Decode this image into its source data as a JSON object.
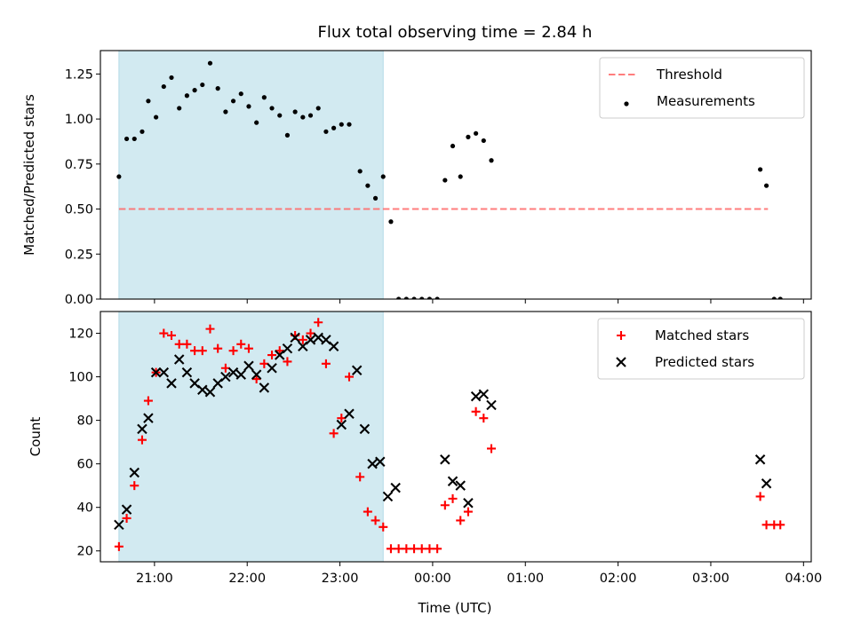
{
  "chart_data": [
    {
      "type": "scatter",
      "title": "Flux total observing time = 2.84 h",
      "xlabel": "",
      "ylabel": "Matched/Predicted stars",
      "xlim": [
        "20:25",
        "04:05"
      ],
      "ylim": [
        0,
        1.38
      ],
      "x_ticks": [
        "21:00",
        "22:00",
        "23:00",
        "00:00",
        "01:00",
        "02:00",
        "03:00",
        "04:00"
      ],
      "y_ticks": [
        "0.00",
        "0.25",
        "0.50",
        "0.75",
        "1.00",
        "1.25"
      ],
      "y_tick_values": [
        0,
        0.25,
        0.5,
        0.75,
        1.0,
        1.25
      ],
      "shaded_region": {
        "start": "20:37",
        "end": "23:28",
        "color": "#add8e6"
      },
      "threshold": {
        "name": "Threshold",
        "value": 0.5,
        "start": "20:37",
        "end": "03:37",
        "color": "#ff6666"
      },
      "legend": {
        "location": "upper right",
        "entries": [
          "Threshold",
          "Measurements"
        ]
      },
      "series": [
        {
          "name": "Measurements",
          "color": "#000000",
          "marker": "dot",
          "points": [
            [
              "20:37",
              0.68
            ],
            [
              "20:42",
              0.89
            ],
            [
              "20:47",
              0.89
            ],
            [
              "20:52",
              0.93
            ],
            [
              "20:56",
              1.1
            ],
            [
              "21:01",
              1.01
            ],
            [
              "21:06",
              1.18
            ],
            [
              "21:11",
              1.23
            ],
            [
              "21:16",
              1.06
            ],
            [
              "21:21",
              1.13
            ],
            [
              "21:26",
              1.16
            ],
            [
              "21:31",
              1.19
            ],
            [
              "21:36",
              1.31
            ],
            [
              "21:41",
              1.17
            ],
            [
              "21:46",
              1.04
            ],
            [
              "21:51",
              1.1
            ],
            [
              "21:56",
              1.14
            ],
            [
              "22:01",
              1.07
            ],
            [
              "22:06",
              0.98
            ],
            [
              "22:11",
              1.12
            ],
            [
              "22:16",
              1.06
            ],
            [
              "22:21",
              1.02
            ],
            [
              "22:26",
              0.91
            ],
            [
              "22:31",
              1.04
            ],
            [
              "22:36",
              1.01
            ],
            [
              "22:41",
              1.02
            ],
            [
              "22:46",
              1.06
            ],
            [
              "22:51",
              0.93
            ],
            [
              "22:56",
              0.95
            ],
            [
              "23:01",
              0.97
            ],
            [
              "23:06",
              0.97
            ],
            [
              "23:13",
              0.71
            ],
            [
              "23:18",
              0.63
            ],
            [
              "23:23",
              0.56
            ],
            [
              "23:28",
              0.68
            ],
            [
              "23:33",
              0.43
            ],
            [
              "23:38",
              0.0
            ],
            [
              "23:43",
              0.0
            ],
            [
              "23:48",
              0.0
            ],
            [
              "23:53",
              0.0
            ],
            [
              "23:58",
              0.0
            ],
            [
              "00:03",
              0.0
            ],
            [
              "00:08",
              0.66
            ],
            [
              "00:13",
              0.85
            ],
            [
              "00:18",
              0.68
            ],
            [
              "00:23",
              0.9
            ],
            [
              "00:28",
              0.92
            ],
            [
              "00:33",
              0.88
            ],
            [
              "00:38",
              0.77
            ],
            [
              "03:32",
              0.72
            ],
            [
              "03:36",
              0.63
            ],
            [
              "03:41",
              0.0
            ],
            [
              "03:45",
              0.0
            ]
          ]
        }
      ]
    },
    {
      "type": "scatter",
      "title": "",
      "xlabel": "Time (UTC)",
      "ylabel": "Count",
      "xlim": [
        "20:25",
        "04:05"
      ],
      "ylim": [
        15,
        130
      ],
      "x_ticks": [
        "21:00",
        "22:00",
        "23:00",
        "00:00",
        "01:00",
        "02:00",
        "03:00",
        "04:00"
      ],
      "y_ticks": [
        "20",
        "40",
        "60",
        "80",
        "100",
        "120"
      ],
      "y_tick_values": [
        20,
        40,
        60,
        80,
        100,
        120
      ],
      "shaded_region": {
        "start": "20:37",
        "end": "23:28",
        "color": "#add8e6"
      },
      "legend": {
        "location": "upper right",
        "entries": [
          "Matched stars",
          "Predicted stars"
        ]
      },
      "series": [
        {
          "name": "Matched stars",
          "color": "#ff0000",
          "marker": "plus",
          "points": [
            [
              "20:37",
              22
            ],
            [
              "20:42",
              35
            ],
            [
              "20:47",
              50
            ],
            [
              "20:52",
              71
            ],
            [
              "20:56",
              89
            ],
            [
              "21:01",
              102
            ],
            [
              "21:06",
              120
            ],
            [
              "21:11",
              119
            ],
            [
              "21:16",
              115
            ],
            [
              "21:21",
              115
            ],
            [
              "21:26",
              112
            ],
            [
              "21:31",
              112
            ],
            [
              "21:36",
              122
            ],
            [
              "21:41",
              113
            ],
            [
              "21:46",
              104
            ],
            [
              "21:51",
              112
            ],
            [
              "21:56",
              115
            ],
            [
              "22:01",
              113
            ],
            [
              "22:06",
              99
            ],
            [
              "22:11",
              106
            ],
            [
              "22:16",
              110
            ],
            [
              "22:21",
              112
            ],
            [
              "22:26",
              107
            ],
            [
              "22:31",
              119
            ],
            [
              "22:36",
              117
            ],
            [
              "22:41",
              120
            ],
            [
              "22:46",
              125
            ],
            [
              "22:51",
              106
            ],
            [
              "22:56",
              74
            ],
            [
              "23:01",
              81
            ],
            [
              "23:06",
              100
            ],
            [
              "23:13",
              54
            ],
            [
              "23:18",
              38
            ],
            [
              "23:23",
              34
            ],
            [
              "23:28",
              31
            ],
            [
              "23:33",
              21
            ],
            [
              "23:38",
              21
            ],
            [
              "23:43",
              21
            ],
            [
              "23:48",
              21
            ],
            [
              "23:53",
              21
            ],
            [
              "23:58",
              21
            ],
            [
              "00:03",
              21
            ],
            [
              "00:08",
              41
            ],
            [
              "00:13",
              44
            ],
            [
              "00:18",
              34
            ],
            [
              "00:23",
              38
            ],
            [
              "00:28",
              84
            ],
            [
              "00:33",
              81
            ],
            [
              "00:38",
              67
            ],
            [
              "03:32",
              45
            ],
            [
              "03:36",
              32
            ],
            [
              "03:41",
              32
            ],
            [
              "03:45",
              32
            ]
          ]
        },
        {
          "name": "Predicted stars",
          "color": "#000000",
          "marker": "cross",
          "points": [
            [
              "20:37",
              32
            ],
            [
              "20:42",
              39
            ],
            [
              "20:47",
              56
            ],
            [
              "20:52",
              76
            ],
            [
              "20:56",
              81
            ],
            [
              "21:01",
              102
            ],
            [
              "21:06",
              102
            ],
            [
              "21:11",
              97
            ],
            [
              "21:16",
              108
            ],
            [
              "21:21",
              102
            ],
            [
              "21:26",
              97
            ],
            [
              "21:31",
              94
            ],
            [
              "21:36",
              93
            ],
            [
              "21:41",
              97
            ],
            [
              "21:46",
              100
            ],
            [
              "21:51",
              102
            ],
            [
              "21:56",
              101
            ],
            [
              "22:01",
              105
            ],
            [
              "22:06",
              101
            ],
            [
              "22:11",
              95
            ],
            [
              "22:16",
              104
            ],
            [
              "22:21",
              110
            ],
            [
              "22:26",
              113
            ],
            [
              "22:31",
              118
            ],
            [
              "22:36",
              114
            ],
            [
              "22:41",
              117
            ],
            [
              "22:46",
              118
            ],
            [
              "22:51",
              117
            ],
            [
              "22:56",
              114
            ],
            [
              "23:01",
              78
            ],
            [
              "23:06",
              83
            ],
            [
              "23:11",
              103
            ],
            [
              "23:16",
              76
            ],
            [
              "23:21",
              60
            ],
            [
              "23:26",
              61
            ],
            [
              "23:31",
              45
            ],
            [
              "23:36",
              49
            ],
            [
              "00:08",
              62
            ],
            [
              "00:13",
              52
            ],
            [
              "00:18",
              50
            ],
            [
              "00:23",
              42
            ],
            [
              "00:28",
              91
            ],
            [
              "00:33",
              92
            ],
            [
              "00:38",
              87
            ],
            [
              "03:32",
              62
            ],
            [
              "03:36",
              51
            ]
          ]
        }
      ]
    }
  ]
}
